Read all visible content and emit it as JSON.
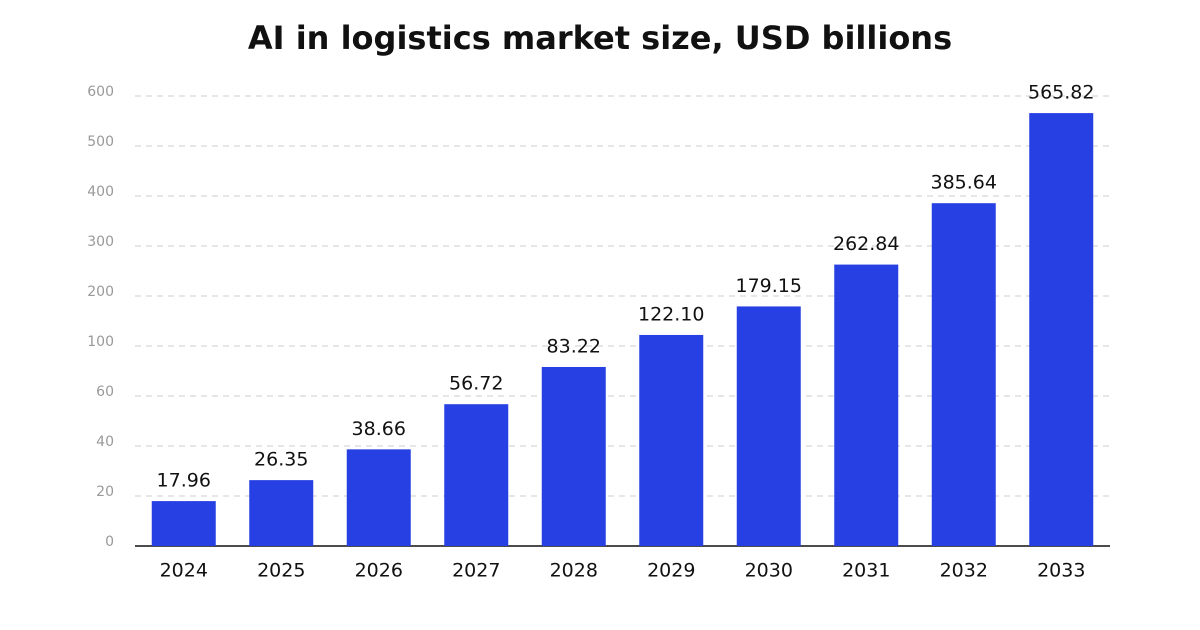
{
  "chart_data": {
    "type": "bar",
    "title": "AI in logistics market size, USD billions",
    "categories": [
      "2024",
      "2025",
      "2026",
      "2027",
      "2028",
      "2029",
      "2030",
      "2031",
      "2032",
      "2033"
    ],
    "values": [
      17.96,
      26.35,
      38.66,
      56.72,
      83.22,
      122.1,
      179.15,
      262.84,
      385.64,
      565.82
    ],
    "value_labels": [
      "17.96",
      "26.35",
      "38.66",
      "56.72",
      "83.22",
      "122.10",
      "179.15",
      "262.84",
      "385.64",
      "565.82"
    ],
    "color": "#2740e3",
    "ylim": [
      0,
      600
    ],
    "yticks": [
      0,
      20,
      40,
      60,
      100,
      200,
      300,
      400,
      500,
      600
    ],
    "grid": true
  }
}
